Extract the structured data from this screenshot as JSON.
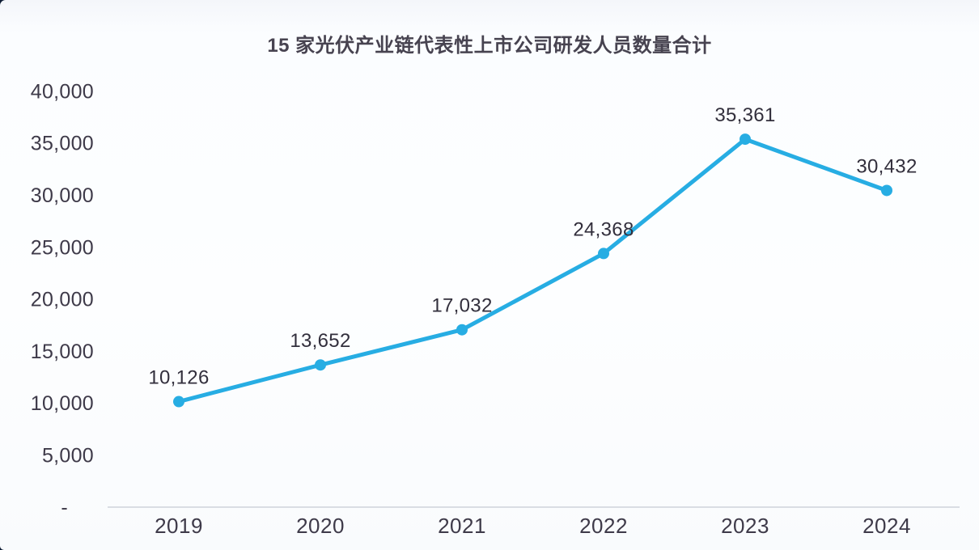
{
  "page": {
    "title": "15 家光伏产业链代表性上市公司研发人员数量合计"
  },
  "chart_data": {
    "type": "line",
    "title": "15 家光伏产业链代表性上市公司研发人员数量合计",
    "categories": [
      "2019",
      "2020",
      "2021",
      "2022",
      "2023",
      "2024"
    ],
    "series": [
      {
        "name": "研发人员数量合计",
        "values": [
          10126,
          13652,
          17032,
          24368,
          35361,
          30432
        ],
        "value_labels": [
          "10,126",
          "13,652",
          "17,032",
          "24,368",
          "35,361",
          "30,432"
        ]
      }
    ],
    "ytick_values": [
      0,
      5000,
      10000,
      15000,
      20000,
      25000,
      30000,
      35000,
      40000
    ],
    "ytick_labels": [
      "-",
      "5,000",
      "10,000",
      "15,000",
      "20,000",
      "25,000",
      "30,000",
      "35,000",
      "40,000"
    ],
    "ylim": [
      0,
      40000
    ],
    "xlabel": "",
    "ylabel": "",
    "grid": false,
    "legend": "none",
    "marker": "circle",
    "colors": {
      "line": "#27ade3",
      "marker": "#27ade3",
      "data_label": "#322f3c",
      "axis_text": "#3e3a49",
      "axis_line": "#d9dde3",
      "title": "#474350"
    }
  }
}
